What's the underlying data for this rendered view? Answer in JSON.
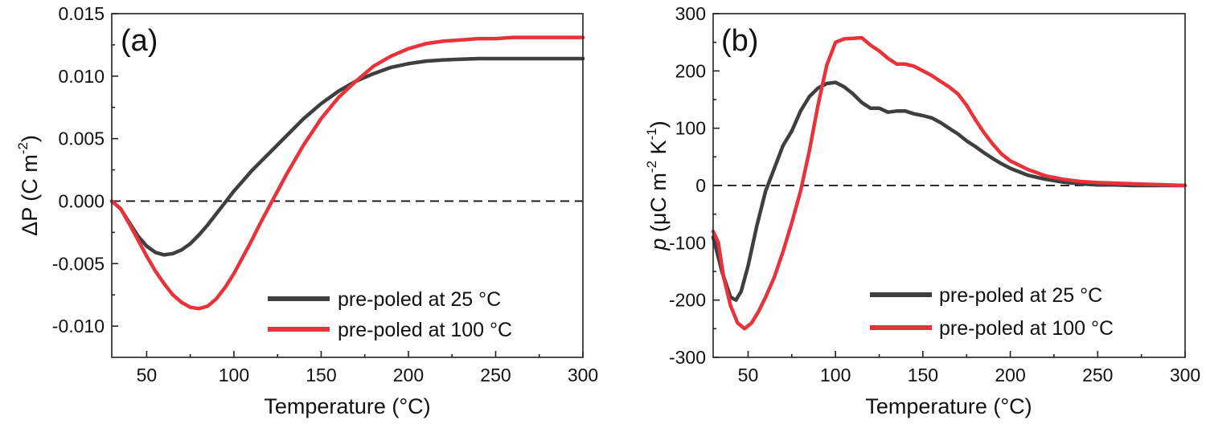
{
  "chart_data": [
    {
      "type": "line",
      "panel_label": "(a)",
      "xlabel": "Temperature (°C)",
      "ylabel_main": "ΔP (C m",
      "ylabel_sup": "-2",
      "ylabel_end": ")",
      "xlim": [
        30,
        300
      ],
      "ylim": [
        -0.0125,
        0.015
      ],
      "xticks": [
        50,
        100,
        150,
        200,
        250,
        300
      ],
      "xtick_labels": [
        "50",
        "100",
        "150",
        "200",
        "250",
        "300"
      ],
      "yticks": [
        -0.01,
        -0.005,
        0.0,
        0.005,
        0.01,
        0.015
      ],
      "ytick_labels": [
        "-0.010",
        "-0.005",
        "0.000",
        "0.005",
        "0.010",
        "0.015"
      ],
      "reference_line_y": 0,
      "legend_position": "bottom-right",
      "colors": {
        "series1": "#3f3f3f",
        "series2": "#e8333b"
      },
      "series": [
        {
          "name": "pre-poled at 25 °C",
          "x": [
            30,
            35,
            40,
            45,
            50,
            55,
            60,
            65,
            70,
            75,
            80,
            85,
            90,
            95,
            100,
            105,
            110,
            120,
            130,
            140,
            150,
            160,
            170,
            180,
            190,
            200,
            210,
            220,
            230,
            240,
            250,
            260,
            270,
            280,
            290,
            300
          ],
          "y": [
            0.0,
            -0.0006,
            -0.0017,
            -0.0028,
            -0.0036,
            -0.0041,
            -0.0043,
            -0.0042,
            -0.0039,
            -0.0034,
            -0.0027,
            -0.0019,
            -0.001,
            -0.0001,
            0.0008,
            0.0016,
            0.0024,
            0.0038,
            0.0052,
            0.0066,
            0.0078,
            0.0088,
            0.0096,
            0.0102,
            0.0107,
            0.011,
            0.0112,
            0.0113,
            0.01135,
            0.0114,
            0.0114,
            0.0114,
            0.0114,
            0.0114,
            0.0114,
            0.0114
          ]
        },
        {
          "name": "pre-poled at 100 °C",
          "x": [
            30,
            35,
            40,
            45,
            50,
            55,
            60,
            65,
            70,
            75,
            80,
            85,
            90,
            95,
            100,
            105,
            110,
            115,
            120,
            125,
            130,
            140,
            150,
            160,
            170,
            180,
            190,
            200,
            210,
            220,
            230,
            240,
            250,
            260,
            270,
            280,
            290,
            300
          ],
          "y": [
            0.0,
            -0.0006,
            -0.0018,
            -0.0031,
            -0.0044,
            -0.0056,
            -0.0066,
            -0.0075,
            -0.0081,
            -0.0085,
            -0.0086,
            -0.0084,
            -0.0078,
            -0.0069,
            -0.0058,
            -0.0045,
            -0.0032,
            -0.0018,
            -0.0005,
            0.0008,
            0.0021,
            0.0045,
            0.0066,
            0.0083,
            0.0096,
            0.0108,
            0.0116,
            0.0122,
            0.0126,
            0.0128,
            0.0129,
            0.013,
            0.013,
            0.0131,
            0.0131,
            0.0131,
            0.0131,
            0.0131
          ]
        }
      ]
    },
    {
      "type": "line",
      "panel_label": "(b)",
      "xlabel": "Temperature (°C)",
      "ylabel_italic": "p",
      "ylabel_main": " (μC m",
      "ylabel_sup1": "-2",
      "ylabel_mid": " K",
      "ylabel_sup2": "-1",
      "ylabel_end": ")",
      "xlim": [
        30,
        300
      ],
      "ylim": [
        -300,
        300
      ],
      "xticks": [
        50,
        100,
        150,
        200,
        250,
        300
      ],
      "xtick_labels": [
        "50",
        "100",
        "150",
        "200",
        "250",
        "300"
      ],
      "yticks": [
        -300,
        -200,
        -100,
        0,
        100,
        200,
        300
      ],
      "ytick_labels": [
        "-300",
        "-200",
        "-100",
        "0",
        "100",
        "200",
        "300"
      ],
      "reference_line_y": 0,
      "legend_position": "bottom-right",
      "colors": {
        "series1": "#3f3f3f",
        "series2": "#e8333b"
      },
      "series": [
        {
          "name": "pre-poled at 25 °C",
          "x": [
            30,
            35,
            40,
            43,
            46,
            50,
            55,
            60,
            65,
            70,
            75,
            80,
            85,
            90,
            95,
            100,
            105,
            110,
            115,
            120,
            125,
            130,
            135,
            140,
            145,
            150,
            155,
            160,
            165,
            170,
            175,
            180,
            185,
            190,
            195,
            200,
            210,
            220,
            230,
            240,
            250,
            260,
            270,
            280,
            290,
            300
          ],
          "y": [
            -90,
            -150,
            -195,
            -200,
            -185,
            -140,
            -70,
            -10,
            30,
            70,
            95,
            130,
            155,
            170,
            178,
            180,
            172,
            160,
            145,
            135,
            135,
            128,
            130,
            130,
            125,
            122,
            118,
            110,
            100,
            90,
            78,
            68,
            57,
            47,
            38,
            30,
            18,
            11,
            6,
            3,
            1,
            1,
            0,
            0,
            0,
            0
          ]
        },
        {
          "name": "pre-poled at 100 °C",
          "x": [
            30,
            33,
            36,
            40,
            44,
            48,
            52,
            56,
            60,
            65,
            70,
            75,
            80,
            85,
            90,
            95,
            100,
            105,
            110,
            115,
            120,
            125,
            130,
            135,
            140,
            145,
            150,
            155,
            160,
            165,
            170,
            175,
            180,
            185,
            190,
            195,
            200,
            210,
            220,
            230,
            240,
            250,
            260,
            270,
            280,
            290,
            300
          ],
          "y": [
            -80,
            -100,
            -160,
            -210,
            -240,
            -250,
            -240,
            -220,
            -195,
            -160,
            -115,
            -65,
            -10,
            60,
            140,
            210,
            250,
            256,
            257,
            258,
            245,
            235,
            222,
            212,
            212,
            208,
            200,
            192,
            182,
            172,
            160,
            140,
            115,
            92,
            72,
            55,
            43,
            28,
            17,
            11,
            7,
            5,
            4,
            3,
            2,
            1,
            0
          ]
        }
      ]
    }
  ]
}
